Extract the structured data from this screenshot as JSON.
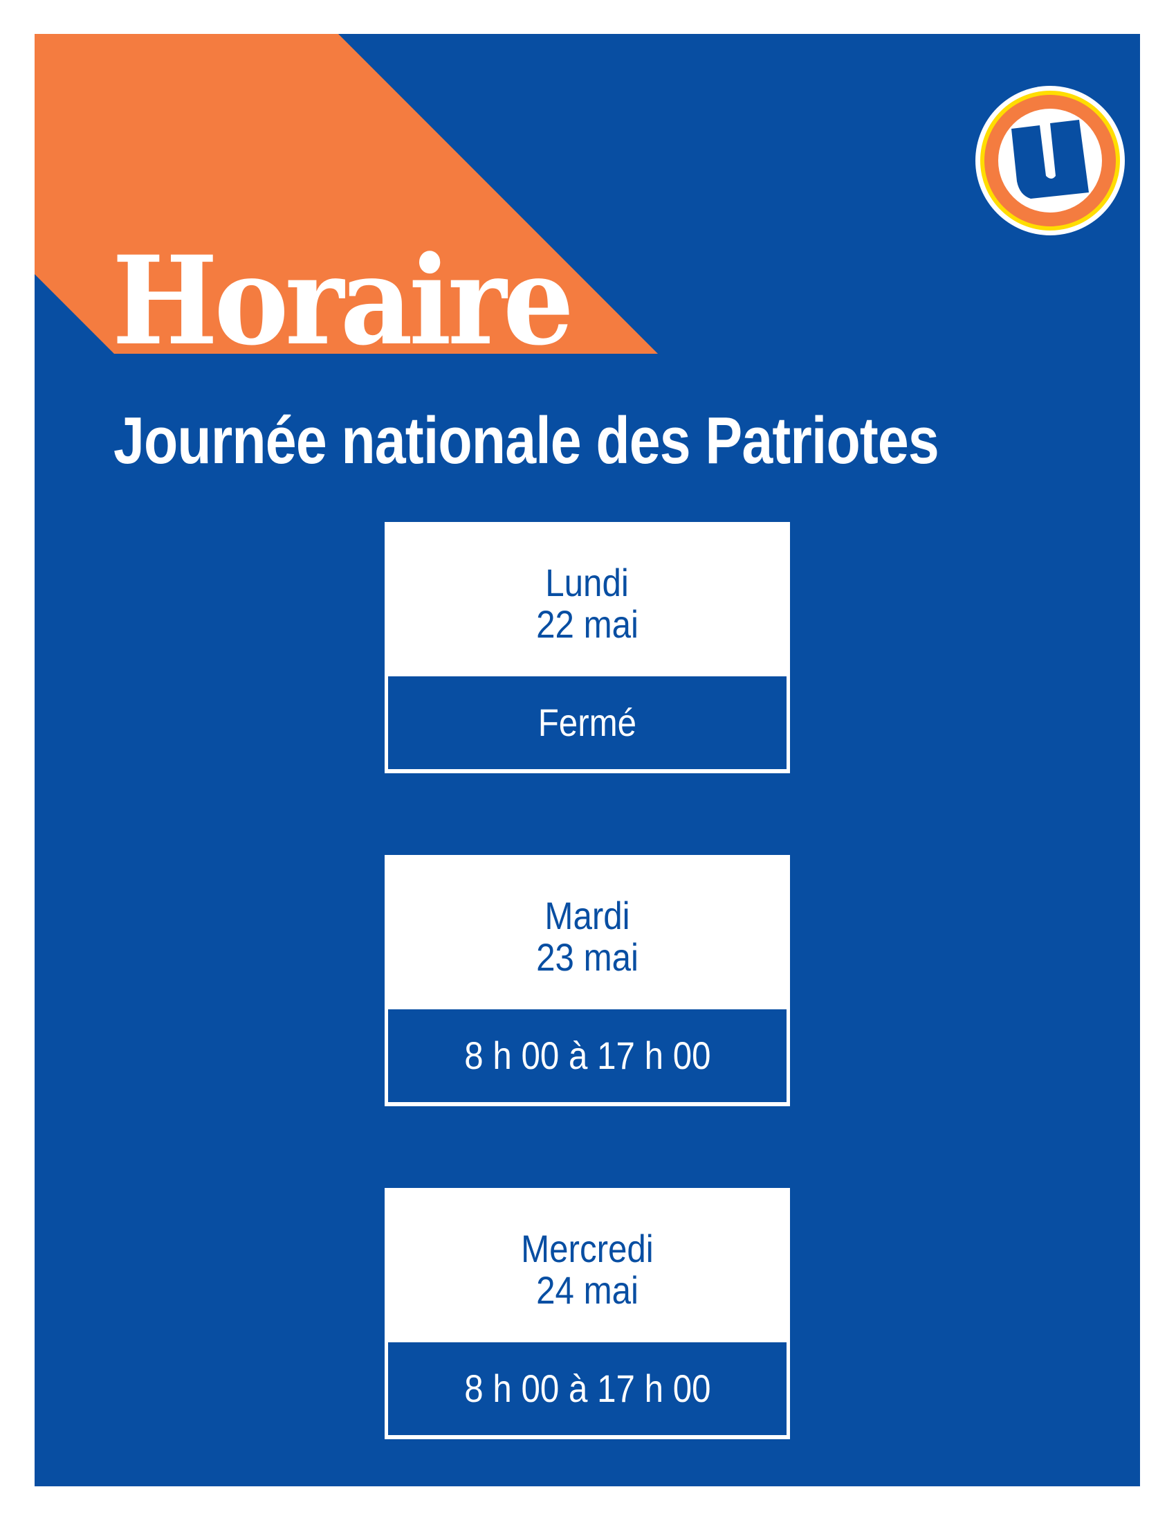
{
  "colors": {
    "blue": "#084ea2",
    "orange": "#f47c40",
    "yellow": "#ffdd00",
    "white": "#ffffff"
  },
  "logo": {
    "icon": "u-logo-icon",
    "letter": "U"
  },
  "header": {
    "title": "Horaire",
    "subtitle": "Journée nationale des Patriotes"
  },
  "schedule": [
    {
      "day": "Lundi",
      "date": "22 mai",
      "hours": "Fermé"
    },
    {
      "day": "Mardi",
      "date": "23 mai",
      "hours": "8 h 00 à 17 h 00"
    },
    {
      "day": "Mercredi",
      "date": "24 mai",
      "hours": "8 h 00 à 17 h 00"
    }
  ]
}
